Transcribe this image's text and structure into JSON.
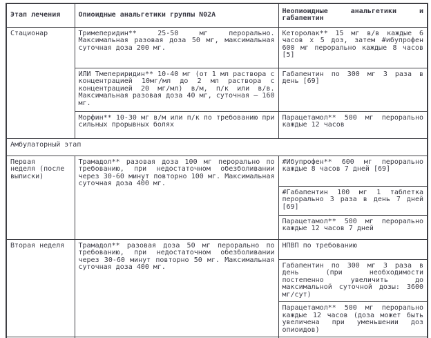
{
  "table": {
    "headers": {
      "stage": "Этап лечения",
      "opioids": "Опиоидные анальгетики группы N02A",
      "nonopioids": "Неопиоидные анальгетики и габапентин"
    },
    "inpatient": {
      "stage": "Стационар",
      "opioid_rows": [
        "Тримеперидин** 25-50 мг перорально. Максимальная разовая доза 50 мг, максимальная суточная доза 200 мг.",
        "ИЛИ Тмепериридин** 10-40 мг (от 1 мл раствора с концентрацией 10мг/мл до 2 мл раствора с концентрацией 20 мг/мл) в/м, п/к или в/в. Максимальная разовая доза 40 мг, суточная – 160 мг.",
        "Морфин** 10-30 мг в/м или п/к по требованию при сильных прорывных болях"
      ],
      "nonopioid_rows": [
        "Кеторолак** 15 мг в/в каждые 6 часов х 5 доз, затем #ибупрофен 600 мг перорально каждые 8 часов [5]",
        "Габапентин по 300 мг 3 раза в день [69]",
        "Парацетамол** 500 мг перорально каждые 12 часов"
      ]
    },
    "outpatient_header": "Амбулаторный этап",
    "week1": {
      "stage": "Первая\nнеделя (после\nвыписки)",
      "opioid": "Трамадол** разовая доза 100 мг перорально по требованию, при недостаточном обезболивании через 30-60 минут повторно 100 мг. Максимальная суточная доза 400 мг.",
      "nonopioid_rows": [
        "#Ибупрофен** 600 мг перорально каждые 8 часов 7 дней [69]",
        "#Габапентин 100 мг 1 таблетка перорально 3 раза в день 7 дней [69]",
        "Парацетамол** 500 мг перорально каждые 12 часов 7 дней"
      ]
    },
    "week2": {
      "stage": "Вторая неделя",
      "opioid": "Трамадол** разовая доза 50 мг перорально по требованию, при недостаточном обезболивании через 30-60 минут повторно 50 мг. Максимальная суточная доза 400 мг.",
      "nonopioid_rows": [
        "НПВП по требованию",
        "Габапентин по 300 мг 3 раза в день (при необходимости постепенно увеличить до максимальной суточной дозы: 3600 мг/сут)",
        "Парацетамол** 500 мг перорально каждые 12 часов (доза может быть увеличена при уменьшении доз опиоидов)"
      ]
    }
  }
}
